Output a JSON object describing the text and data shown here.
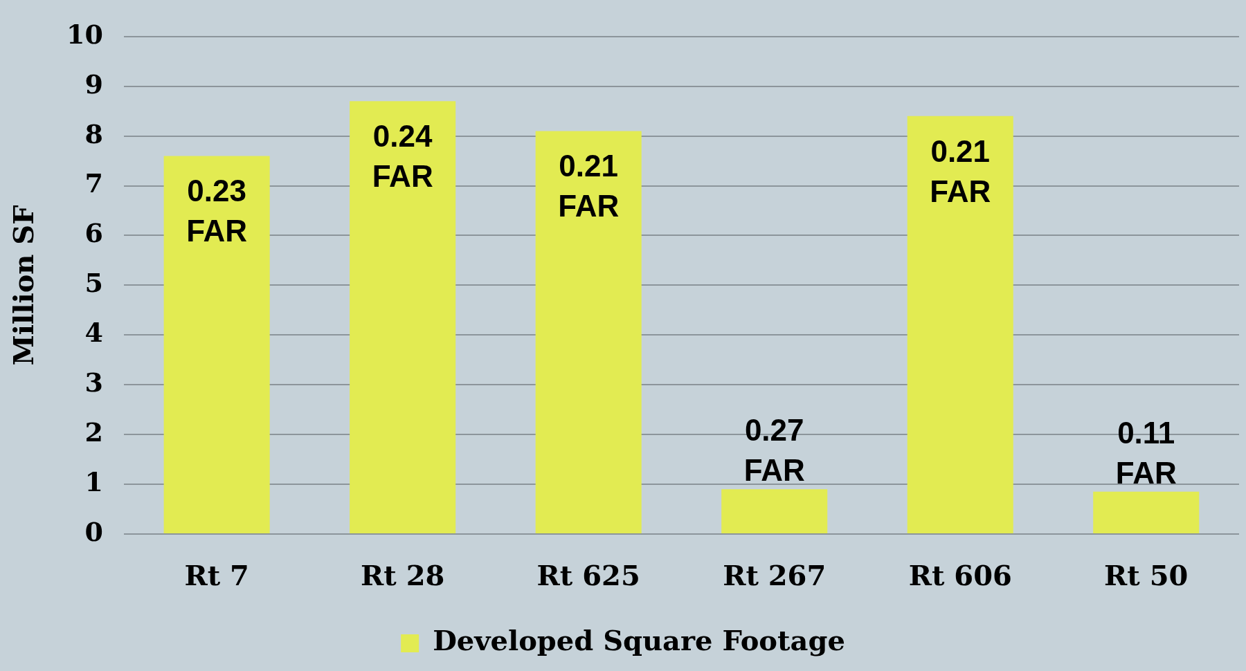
{
  "chart_data": {
    "type": "bar",
    "ylabel": "Million SF",
    "categories": [
      "Rt 7",
      "Rt 28",
      "Rt 625",
      "Rt 267",
      "Rt 606",
      "Rt 50"
    ],
    "series": [
      {
        "name": "Developed Square Footage",
        "color": "#e2eb52",
        "values": [
          7.6,
          8.7,
          8.1,
          0.9,
          8.4,
          0.85
        ]
      }
    ],
    "ylim": [
      0,
      10
    ],
    "yticks": [
      0,
      1,
      2,
      3,
      4,
      5,
      6,
      7,
      8,
      9,
      10
    ],
    "grid": "y",
    "legend": "bottom",
    "annotations": [
      {
        "text": "0.23 FAR",
        "x": "Rt 7",
        "y": 7.6
      },
      {
        "text": "0.24 FAR",
        "x": "Rt 28",
        "y": 8.7
      },
      {
        "text": "0.21 FAR",
        "x": "Rt 625",
        "y": 8.1
      },
      {
        "text": "0.27 FAR",
        "x": "Rt 267",
        "y": 0.9
      },
      {
        "text": "0.21 FAR",
        "x": "Rt 606",
        "y": 8.4
      },
      {
        "text": "0.11 FAR",
        "x": "Rt 50",
        "y": 0.85
      }
    ]
  }
}
